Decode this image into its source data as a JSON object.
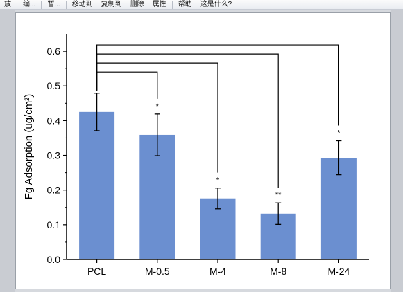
{
  "toolbar": {
    "items": [
      "放",
      "编...",
      "暂...",
      "移动到",
      "复制到",
      "删除",
      "属性",
      "帮助",
      "这是什么?"
    ]
  },
  "chart_data": {
    "type": "bar",
    "categories": [
      "PCL",
      "M-0.5",
      "M-4",
      "M-8",
      "M-24"
    ],
    "values": [
      0.425,
      0.359,
      0.176,
      0.132,
      0.293
    ],
    "errors": [
      0.054,
      0.06,
      0.03,
      0.031,
      0.049
    ],
    "significance": [
      "",
      "*",
      "*",
      "**",
      "*"
    ],
    "comparison_brackets": "PCL vs each sample",
    "title": "",
    "xlabel": "",
    "ylabel": "Fg Adsorption (ug/cm²)",
    "ylim": [
      0.0,
      0.65
    ],
    "yticks": [
      "0.0",
      "0.1",
      "0.2",
      "0.3",
      "0.4",
      "0.5",
      "0.6"
    ],
    "bar_color": "#6b8fd0"
  }
}
